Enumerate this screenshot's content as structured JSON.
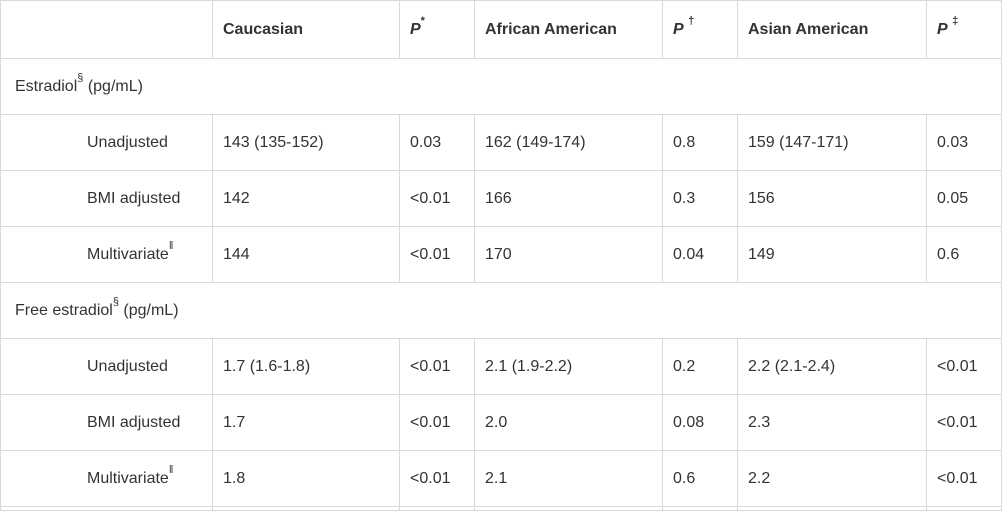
{
  "table": {
    "headers": {
      "blank": "",
      "caucasian": "Caucasian",
      "p1_letter": "P",
      "p1_mark": "*",
      "african_american": "African American",
      "p2_letter": "P",
      "p2_mark": "†",
      "asian_american": "Asian American",
      "p3_letter": "P",
      "p3_mark": "‡"
    },
    "sections": [
      {
        "title": "Estradiol",
        "title_mark": "§",
        "unit": " (pg/mL)",
        "rows": [
          {
            "label": "Unadjusted",
            "label_mark": "",
            "cauc": "143 (135-152)",
            "p1": "0.03",
            "afr": "162 (149-174)",
            "p2": "0.8",
            "asian": "159 (147-171)",
            "p3": "0.03"
          },
          {
            "label": "BMI adjusted",
            "label_mark": "",
            "cauc": "142",
            "p1": "<0.01",
            "afr": "166",
            "p2": "0.3",
            "asian": "156",
            "p3": "0.05"
          },
          {
            "label": "Multivariate",
            "label_mark": "‖",
            "cauc": "144",
            "p1": "<0.01",
            "afr": "170",
            "p2": "0.04",
            "asian": "149",
            "p3": "0.6"
          }
        ]
      },
      {
        "title": "Free estradiol",
        "title_mark": "§",
        "unit": " (pg/mL)",
        "rows": [
          {
            "label": "Unadjusted",
            "label_mark": "",
            "cauc": "1.7 (1.6-1.8)",
            "p1": "<0.01",
            "afr": "2.1 (1.9-2.2)",
            "p2": "0.2",
            "asian": "2.2 (2.1-2.4)",
            "p3": "<0.01"
          },
          {
            "label": "BMI adjusted",
            "label_mark": "",
            "cauc": "1.7",
            "p1": "<0.01",
            "afr": "2.0",
            "p2": "0.08",
            "asian": "2.3",
            "p3": "<0.01"
          },
          {
            "label": "Multivariate",
            "label_mark": "‖",
            "cauc": "1.8",
            "p1": "<0.01",
            "afr": "2.1",
            "p2": "0.6",
            "asian": "2.2",
            "p3": "<0.01"
          }
        ]
      }
    ]
  }
}
